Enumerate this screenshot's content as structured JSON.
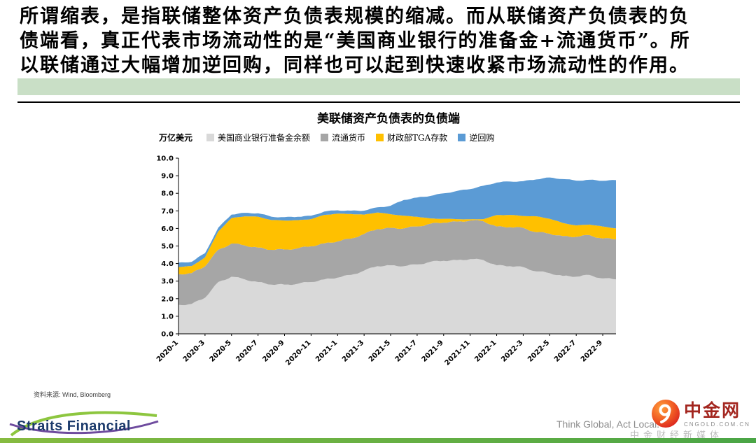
{
  "intro": {
    "lines": [
      "所谓缩表，是指联储整体资产负债表规模的缩减。而从联储资产负债表的负",
      "债端看，真正代表市场流动性的是“美国商业银行的准备金+流通货币”。所",
      "以联储通过大幅增加逆回购，同样也可以起到快速收紧市场流动性的作用。"
    ]
  },
  "chart": {
    "title": "美联储资产负债表的负债端",
    "unit_label": "万亿美元",
    "source_note": "资料来源: Wind, Bloomberg"
  },
  "chart_data": {
    "type": "area",
    "stacked": true,
    "title": "美联储资产负债表的负债端",
    "ylabel": "万亿美元",
    "xlabel": "",
    "ylim": [
      0,
      10
    ],
    "y_tick_step": 1,
    "grid": false,
    "legend_position": "top",
    "x": [
      "2020-1",
      "2020-2",
      "2020-3",
      "2020-4",
      "2020-5",
      "2020-6",
      "2020-7",
      "2020-8",
      "2020-9",
      "2020-10",
      "2020-11",
      "2020-12",
      "2021-1",
      "2021-2",
      "2021-3",
      "2021-4",
      "2021-5",
      "2021-6",
      "2021-7",
      "2021-8",
      "2021-9",
      "2021-10",
      "2021-11",
      "2021-12",
      "2022-1",
      "2022-2",
      "2022-3",
      "2022-4",
      "2022-5",
      "2022-6",
      "2022-7",
      "2022-8",
      "2022-9",
      "2022-10"
    ],
    "x_tick_labels": [
      "2020-1",
      "2020-3",
      "2020-5",
      "2020-7",
      "2020-9",
      "2020-11",
      "2021-1",
      "2021-3",
      "2021-5",
      "2021-7",
      "2021-9",
      "2021-11",
      "2022-1",
      "2022-3",
      "2022-5",
      "2022-7",
      "2022-9"
    ],
    "series": [
      {
        "name": "美国商业银行准备金余额",
        "color": "#d9d9d9",
        "values": [
          1.65,
          1.7,
          2.05,
          2.95,
          3.25,
          3.1,
          2.95,
          2.8,
          2.8,
          2.85,
          2.95,
          3.1,
          3.2,
          3.35,
          3.6,
          3.85,
          3.9,
          3.85,
          3.95,
          4.1,
          4.15,
          4.2,
          4.25,
          4.2,
          3.9,
          3.85,
          3.8,
          3.55,
          3.45,
          3.3,
          3.25,
          3.35,
          3.15,
          3.1
        ]
      },
      {
        "name": "流通货币",
        "color": "#a6a6a6",
        "values": [
          1.75,
          1.76,
          1.79,
          1.84,
          1.89,
          1.93,
          1.96,
          1.98,
          2.0,
          2.02,
          2.03,
          2.05,
          2.06,
          2.07,
          2.09,
          2.11,
          2.13,
          2.15,
          2.16,
          2.17,
          2.18,
          2.19,
          2.2,
          2.21,
          2.21,
          2.22,
          2.23,
          2.24,
          2.25,
          2.26,
          2.27,
          2.27,
          2.28,
          2.28
        ]
      },
      {
        "name": "财政部TGA存款",
        "color": "#ffc000",
        "values": [
          0.4,
          0.4,
          0.51,
          1.04,
          1.45,
          1.66,
          1.76,
          1.7,
          1.65,
          1.6,
          1.55,
          1.62,
          1.58,
          1.4,
          1.1,
          0.95,
          0.78,
          0.72,
          0.55,
          0.3,
          0.22,
          0.14,
          0.07,
          0.12,
          0.65,
          0.7,
          0.68,
          0.9,
          0.85,
          0.75,
          0.65,
          0.6,
          0.68,
          0.62
        ]
      },
      {
        "name": "逆回购",
        "color": "#5b9bd5",
        "values": [
          0.25,
          0.24,
          0.24,
          0.21,
          0.2,
          0.2,
          0.19,
          0.19,
          0.19,
          0.19,
          0.19,
          0.19,
          0.19,
          0.19,
          0.22,
          0.29,
          0.48,
          0.9,
          1.1,
          1.28,
          1.45,
          1.6,
          1.72,
          1.9,
          1.85,
          1.9,
          1.98,
          2.1,
          2.35,
          2.5,
          2.55,
          2.55,
          2.6,
          2.75
        ]
      }
    ]
  },
  "footer": {
    "straits_text": "Straits Financial",
    "tagline": "Think Global, Act Local.",
    "cngold_name": "中金网",
    "cngold_domain": "CNGOLD.COM.CN",
    "watermark": "中金财经新媒体"
  }
}
